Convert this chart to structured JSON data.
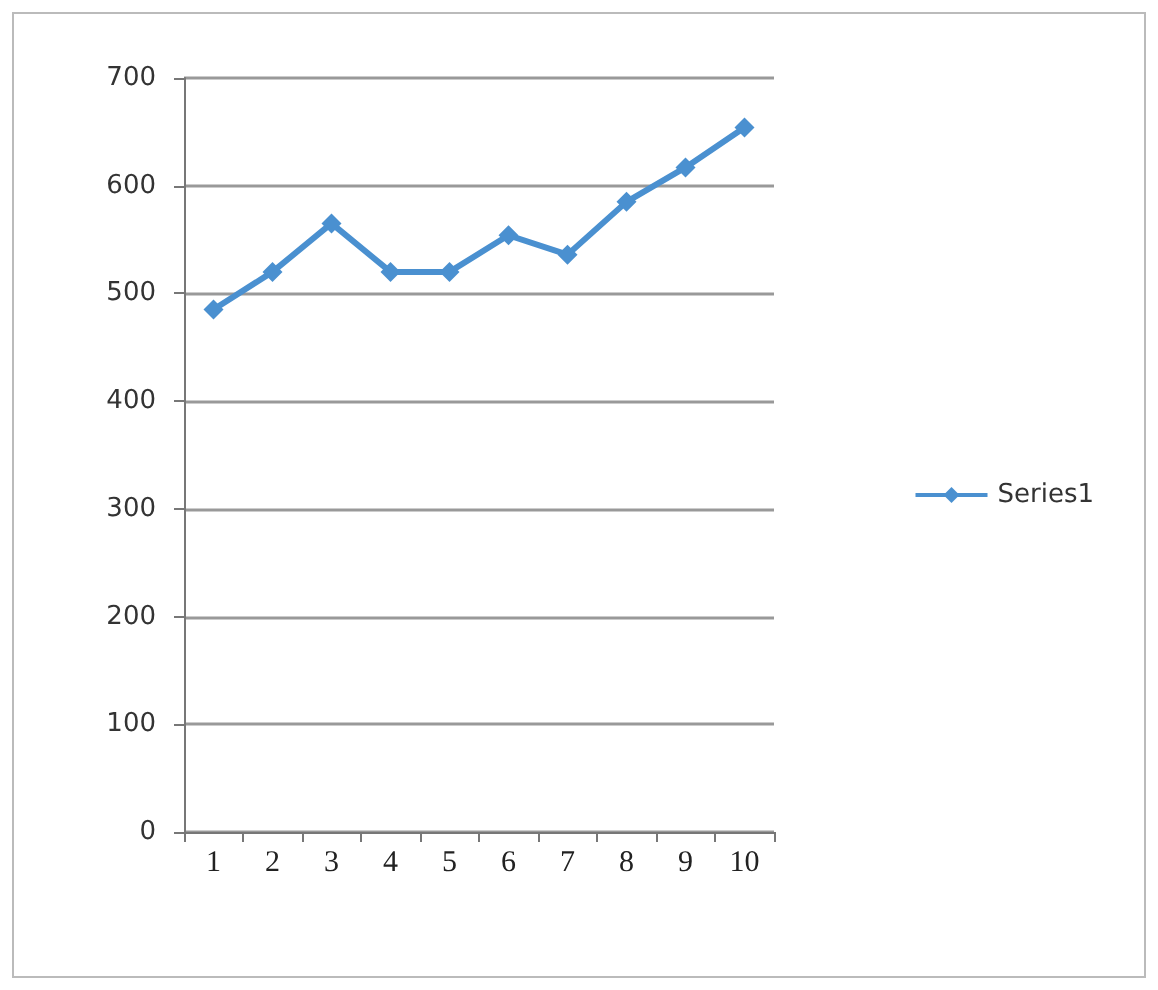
{
  "chart_data": {
    "type": "line",
    "categories": [
      "1",
      "2",
      "3",
      "4",
      "5",
      "6",
      "7",
      "8",
      "9",
      "10"
    ],
    "series": [
      {
        "name": "Series1",
        "color": "#4a90d0",
        "values": [
          485,
          520,
          565,
          520,
          520,
          554,
          536,
          585,
          617,
          654
        ]
      }
    ],
    "ylim": [
      0,
      700
    ],
    "yticks": [
      0,
      100,
      200,
      300,
      400,
      500,
      600,
      700
    ],
    "grid": "y",
    "legend": "right",
    "marker": "diamond",
    "line_style": "solid"
  }
}
